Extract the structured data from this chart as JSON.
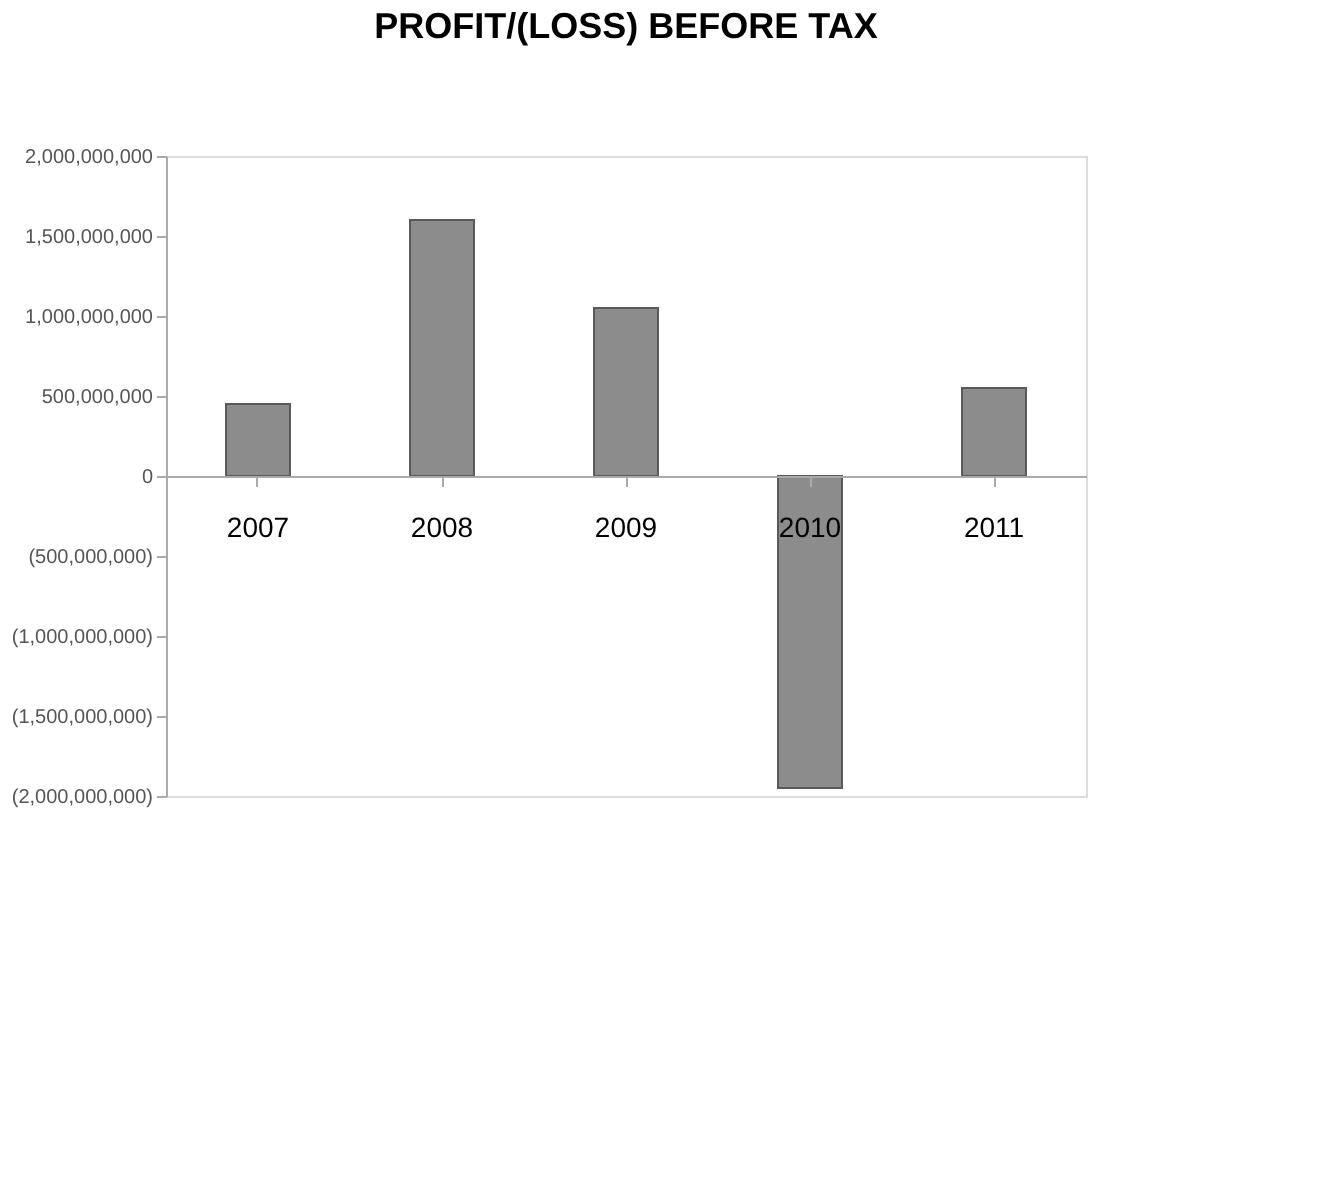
{
  "chart_data": {
    "type": "bar",
    "title": "PROFIT/(LOSS) BEFORE TAX",
    "categories": [
      "2007",
      "2008",
      "2009",
      "2010",
      "2011"
    ],
    "values": [
      450000000,
      1600000000,
      1050000000,
      -1950000000,
      550000000
    ],
    "color": "#8c8c8c",
    "ylim": [
      -2000000000,
      2000000000
    ],
    "yticks": [
      {
        "value": -2000000000,
        "label": "(2,000,000,000)"
      },
      {
        "value": -1500000000,
        "label": "(1,500,000,000)"
      },
      {
        "value": -1000000000,
        "label": "(1,000,000,000)"
      },
      {
        "value": -500000000,
        "label": "(500,000,000)"
      },
      0,
      {
        "value": 500000000,
        "label": "500,000,000"
      },
      {
        "value": 1000000000,
        "label": "1,000,000,000"
      },
      {
        "value": 1500000000,
        "label": "1,500,000,000"
      },
      {
        "value": 2000000000,
        "label": "2,000,000,000"
      }
    ],
    "grid": false
  }
}
